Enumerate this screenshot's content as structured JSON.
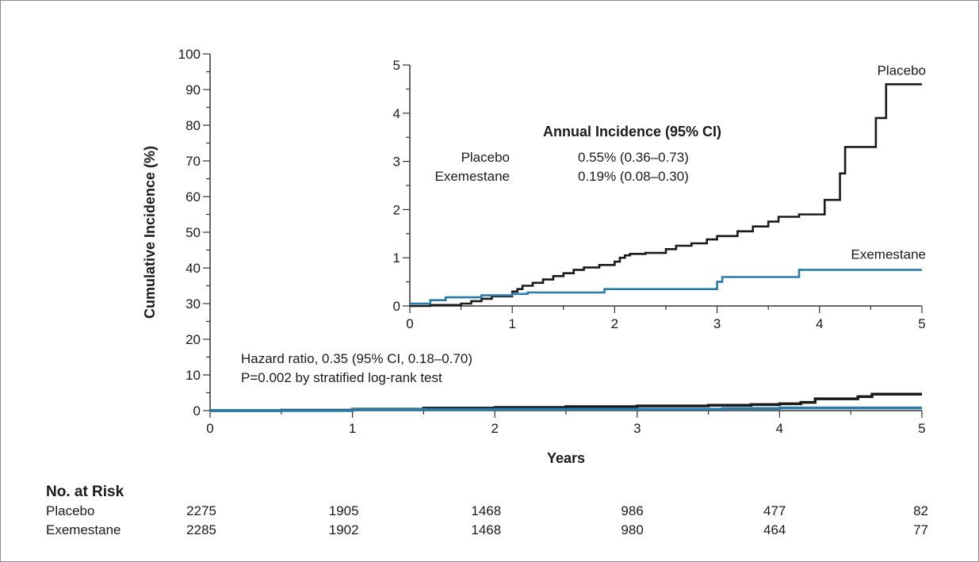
{
  "chart_data": [
    {
      "type": "line",
      "ylabel": "Cumulative Incidence (%)",
      "xlabel": "Years",
      "xlim": [
        0,
        5
      ],
      "ylim": [
        0,
        100
      ],
      "xticks": [
        "0",
        "1",
        "2",
        "3",
        "4",
        "5"
      ],
      "yticks": [
        "0",
        "10",
        "20",
        "30",
        "40",
        "50",
        "60",
        "70",
        "80",
        "90",
        "100"
      ],
      "annotation": {
        "line1": "Hazard ratio, 0.35 (95% CI, 0.18–0.70)",
        "line2": "P=0.002 by stratified log-rank test"
      },
      "series": [
        {
          "name": "Placebo",
          "color": "#1a1a1a",
          "x": [
            0,
            0.5,
            1.0,
            1.5,
            2.0,
            2.5,
            3.0,
            3.5,
            3.8,
            4.0,
            4.15,
            4.25,
            4.35,
            4.55,
            4.65,
            5.0
          ],
          "y": [
            0,
            0.1,
            0.4,
            0.7,
            0.9,
            1.1,
            1.3,
            1.5,
            1.7,
            1.9,
            2.3,
            3.3,
            3.3,
            3.9,
            4.6,
            4.6
          ]
        },
        {
          "name": "Exemestane",
          "color": "#2a7aa8",
          "x": [
            0,
            1.0,
            2.0,
            3.0,
            3.6,
            4.0,
            5.0
          ],
          "y": [
            0,
            0.3,
            0.35,
            0.4,
            0.6,
            0.75,
            0.75
          ]
        }
      ]
    },
    {
      "type": "line",
      "inset": true,
      "title": "Annual Incidence (95% CI)",
      "xlim": [
        0,
        5
      ],
      "ylim": [
        0,
        5
      ],
      "xticks": [
        "0",
        "1",
        "2",
        "3",
        "4",
        "5"
      ],
      "yticks": [
        "0",
        "1",
        "2",
        "3",
        "4",
        "5"
      ],
      "legend": [
        {
          "name": "Placebo",
          "value": "0.55% (0.36–0.73)"
        },
        {
          "name": "Exemestane",
          "value": "0.19% (0.08–0.30)"
        }
      ],
      "series": [
        {
          "name": "Placebo",
          "color": "#1a1a1a",
          "x": [
            0,
            0.2,
            0.5,
            0.6,
            0.7,
            0.8,
            1.0,
            1.05,
            1.1,
            1.2,
            1.3,
            1.4,
            1.5,
            1.6,
            1.7,
            1.85,
            2.0,
            2.05,
            2.1,
            2.15,
            2.3,
            2.5,
            2.6,
            2.75,
            2.9,
            3.0,
            3.2,
            3.35,
            3.5,
            3.6,
            3.8,
            4.05,
            4.2,
            4.25,
            4.3,
            4.55,
            4.65,
            4.7,
            5.0
          ],
          "y": [
            0,
            0.02,
            0.05,
            0.1,
            0.15,
            0.2,
            0.3,
            0.35,
            0.42,
            0.48,
            0.55,
            0.62,
            0.68,
            0.75,
            0.8,
            0.85,
            0.92,
            1.0,
            1.05,
            1.08,
            1.1,
            1.18,
            1.25,
            1.3,
            1.38,
            1.45,
            1.55,
            1.65,
            1.75,
            1.85,
            1.9,
            2.2,
            2.75,
            3.3,
            3.3,
            3.9,
            4.6,
            4.6,
            4.6
          ]
        },
        {
          "name": "Exemestane",
          "color": "#2a7aa8",
          "x": [
            0,
            0.2,
            0.35,
            0.7,
            1.0,
            1.15,
            1.9,
            3.0,
            3.05,
            3.8,
            5.0
          ],
          "y": [
            0.05,
            0.12,
            0.18,
            0.22,
            0.25,
            0.28,
            0.35,
            0.5,
            0.6,
            0.75,
            0.75
          ]
        }
      ]
    }
  ],
  "risk_table": {
    "title": "No. at Risk",
    "rows": [
      {
        "label": "Placebo",
        "values": [
          "2275",
          "1905",
          "1468",
          "986",
          "477",
          "82"
        ]
      },
      {
        "label": "Exemestane",
        "values": [
          "2285",
          "1902",
          "1468",
          "980",
          "464",
          "77"
        ]
      }
    ]
  }
}
